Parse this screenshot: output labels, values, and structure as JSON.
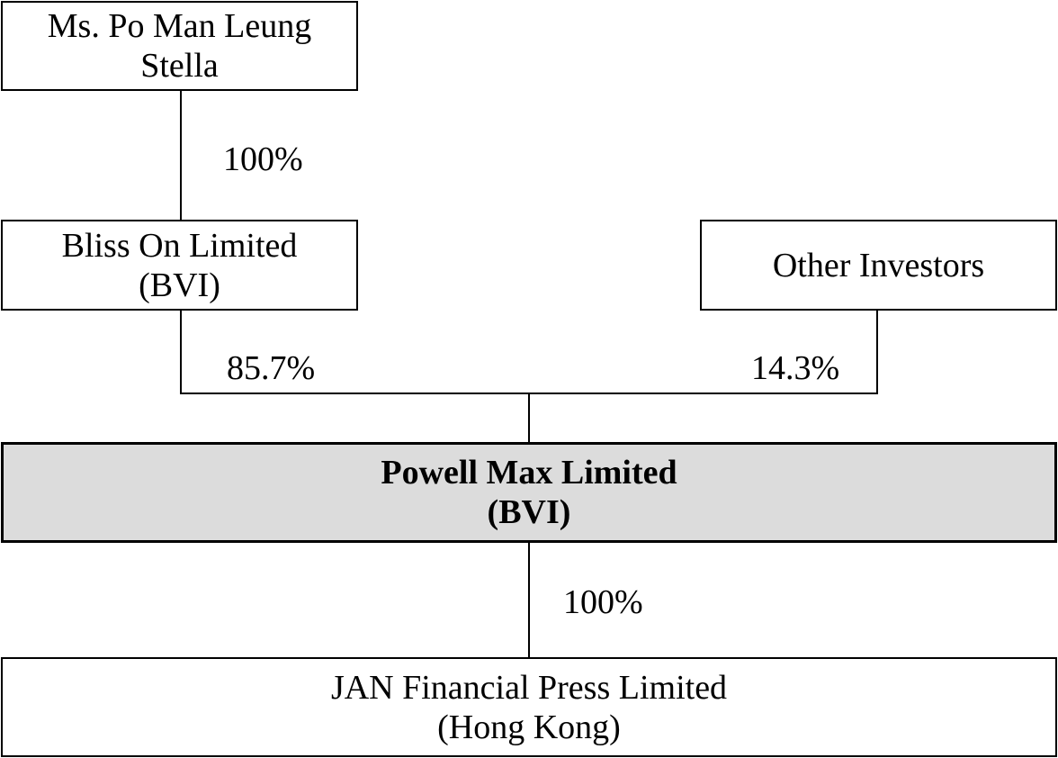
{
  "entities": {
    "shareholder": {
      "line1": "Ms. Po Man Leung",
      "line2": "Stella"
    },
    "bliss_on": {
      "line1": "Bliss On Limited",
      "line2": "(BVI)"
    },
    "other_investors": {
      "line1": "Other Investors"
    },
    "powell_max": {
      "line1": "Powell Max Limited",
      "line2": "(BVI)"
    },
    "jan_financial": {
      "line1": "JAN Financial Press Limited",
      "line2": "(Hong Kong)"
    }
  },
  "ownership": {
    "shareholder_to_bliss_on": "100%",
    "bliss_on_to_powell_max": "85.7%",
    "other_investors_to_powell_max": "14.3%",
    "powell_max_to_jan_financial": "100%"
  },
  "colors": {
    "highlight_fill": "#dcdcdc",
    "line": "#000000"
  }
}
